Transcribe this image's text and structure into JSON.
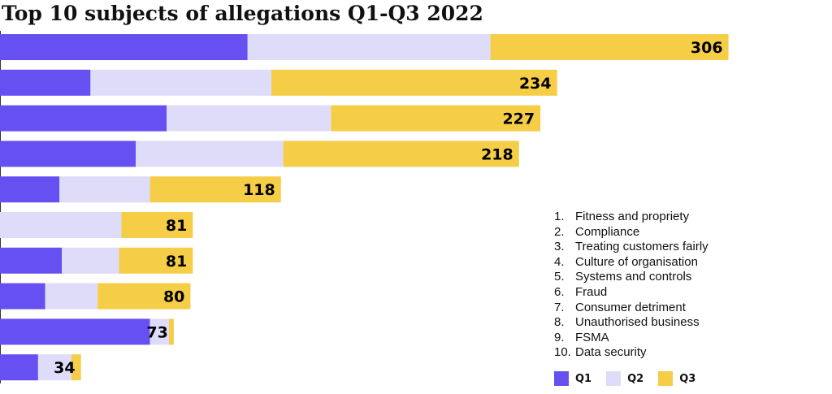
{
  "chart_data": {
    "type": "bar",
    "orientation": "horizontal",
    "stacked": true,
    "title": "Top 10 subjects of allegations Q1-Q3 2022",
    "categories": [
      "1",
      "2",
      "3",
      "4",
      "5",
      "6",
      "7",
      "8",
      "9",
      "10"
    ],
    "series": [
      {
        "name": "Q1",
        "color": "#6650f2",
        "values": [
          104,
          38,
          70,
          57,
          25,
          0,
          26,
          19,
          63,
          16
        ]
      },
      {
        "name": "Q2",
        "color": "#dedcf9",
        "values": [
          102,
          76,
          69,
          62,
          38,
          51,
          24,
          22,
          8,
          14
        ]
      },
      {
        "name": "Q3",
        "color": "#f6cd46",
        "values": [
          100,
          120,
          88,
          99,
          55,
          30,
          31,
          39,
          2,
          4
        ]
      }
    ],
    "totals": [
      306,
      234,
      227,
      218,
      118,
      81,
      81,
      80,
      73,
      34
    ],
    "xlim": [
      0,
      350
    ],
    "grid": false,
    "legend_position": "bottom-right"
  },
  "category_legend": [
    {
      "num": "1.",
      "label": "Fitness and propriety"
    },
    {
      "num": "2.",
      "label": "Compliance"
    },
    {
      "num": "3.",
      "label": "Treating customers fairly"
    },
    {
      "num": "4.",
      "label": "Culture of organisation"
    },
    {
      "num": "5.",
      "label": "Systems and controls"
    },
    {
      "num": "6.",
      "label": "Fraud"
    },
    {
      "num": "7.",
      "label": "Consumer detriment"
    },
    {
      "num": "8.",
      "label": "Unauthorised business"
    },
    {
      "num": "9.",
      "label": "FSMA"
    },
    {
      "num": "10.",
      "label": "Data security"
    }
  ]
}
